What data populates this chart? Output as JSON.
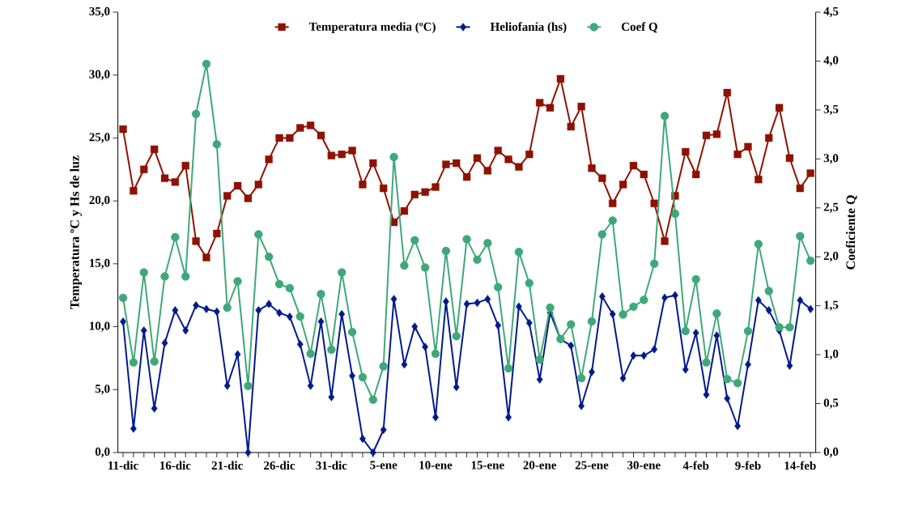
{
  "chart_data": {
    "type": "line",
    "ylabel": "Temperatura ºC y Hs de luz",
    "y2label": "Coeficiente Q",
    "categories": [
      "11-dic",
      null,
      null,
      null,
      null,
      "16-dic",
      null,
      null,
      null,
      null,
      "21-dic",
      null,
      null,
      null,
      null,
      "26-dic",
      null,
      null,
      null,
      null,
      "31-dic",
      null,
      null,
      null,
      null,
      "5-ene",
      null,
      null,
      null,
      null,
      "10-ene",
      null,
      null,
      null,
      null,
      "15-ene",
      null,
      null,
      null,
      null,
      "20-ene",
      null,
      null,
      null,
      null,
      "25-ene",
      null,
      null,
      null,
      null,
      "30-ene",
      null,
      null,
      null,
      null,
      "4-feb",
      null,
      null,
      null,
      null,
      "9-feb",
      null,
      null,
      null,
      null,
      "14-feb",
      null
    ],
    "series": [
      {
        "name": "Temperatura media (ºC)",
        "color": "#8e1200",
        "marker": "square",
        "values": [
          25.7,
          20.8,
          22.5,
          24.1,
          21.8,
          21.5,
          22.8,
          16.8,
          15.5,
          17.4,
          20.4,
          21.2,
          20.2,
          21.3,
          23.3,
          25.0,
          25.0,
          25.8,
          26.0,
          25.2,
          23.6,
          23.7,
          24.0,
          21.3,
          23.0,
          21.0,
          18.3,
          19.2,
          20.5,
          20.7,
          21.1,
          22.9,
          23.0,
          21.9,
          23.4,
          22.4,
          24.0,
          23.3,
          22.7,
          23.7,
          27.8,
          27.4,
          29.7,
          25.9,
          27.5,
          22.6,
          21.8,
          19.8,
          21.3,
          22.8,
          22.1,
          19.8,
          16.8,
          20.4,
          23.9,
          22.1,
          25.2,
          25.3,
          28.6,
          23.7,
          24.3,
          21.7,
          25.0,
          27.4,
          23.4,
          21.0,
          22.2
        ]
      },
      {
        "name": "Heliofanía (hs)",
        "color": "#001a8c",
        "marker": "diamond",
        "values": [
          10.4,
          1.9,
          9.7,
          3.5,
          8.7,
          11.3,
          9.7,
          11.7,
          11.4,
          11.2,
          5.3,
          7.8,
          0.0,
          11.3,
          11.8,
          11.1,
          10.8,
          8.6,
          5.3,
          10.4,
          4.4,
          11.0,
          6.1,
          1.1,
          0.0,
          1.8,
          12.2,
          7.0,
          10.0,
          8.4,
          2.8,
          12.0,
          5.2,
          11.8,
          11.9,
          12.2,
          10.1,
          2.8,
          11.6,
          10.3,
          5.8,
          11.1,
          9.0,
          8.5,
          3.7,
          6.4,
          12.4,
          11.0,
          5.9,
          7.7,
          7.7,
          8.2,
          12.3,
          12.5,
          6.6,
          9.5,
          4.6,
          9.3,
          4.3,
          2.1,
          7.0,
          12.1,
          11.3,
          9.7,
          6.9,
          12.1,
          11.4
        ]
      },
      {
        "name": "Coef Q",
        "color": "#3fa87a",
        "marker": "circle",
        "axis": "y2",
        "values": [
          1.58,
          0.92,
          1.84,
          0.93,
          1.8,
          2.2,
          1.8,
          3.46,
          3.97,
          3.15,
          1.48,
          1.75,
          0.68,
          2.23,
          2.0,
          1.72,
          1.68,
          1.39,
          1.01,
          1.62,
          1.05,
          1.84,
          1.23,
          0.77,
          0.54,
          0.88,
          3.02,
          1.91,
          2.17,
          1.89,
          1.01,
          2.06,
          1.19,
          2.18,
          1.97,
          2.14,
          1.69,
          0.86,
          2.05,
          1.73,
          0.95,
          1.48,
          1.16,
          1.31,
          0.76,
          1.34,
          2.23,
          2.37,
          1.41,
          1.49,
          1.56,
          1.93,
          3.44,
          2.44,
          1.24,
          1.77,
          0.92,
          1.42,
          0.75,
          0.71,
          1.24,
          2.13,
          1.65,
          1.28,
          1.28,
          2.21,
          1.96
        ]
      }
    ],
    "ylim": [
      0,
      35
    ],
    "yticks": [
      {
        "value": 0,
        "label": "0,0"
      },
      {
        "value": 5,
        "label": "5,0"
      },
      {
        "value": 10,
        "label": "10,0"
      },
      {
        "value": 15,
        "label": "15,0"
      },
      {
        "value": 20,
        "label": "20,0"
      },
      {
        "value": 25,
        "label": "25,0"
      },
      {
        "value": 30,
        "label": "30,0"
      },
      {
        "value": 35,
        "label": "35,0"
      }
    ],
    "y2lim": [
      0,
      4.5
    ],
    "y2ticks": [
      {
        "value": 0,
        "label": "0,0"
      },
      {
        "value": 0.5,
        "label": "0,5"
      },
      {
        "value": 1,
        "label": "1,0"
      },
      {
        "value": 1.5,
        "label": "1,5"
      },
      {
        "value": 2,
        "label": "2,0"
      },
      {
        "value": 2.5,
        "label": "2,5"
      },
      {
        "value": 3,
        "label": "3,0"
      },
      {
        "value": 3.5,
        "label": "3,5"
      },
      {
        "value": 4,
        "label": "4,0"
      },
      {
        "value": 4.5,
        "label": "4,5"
      }
    ],
    "grid": false,
    "legend": "top",
    "line_style": "solid"
  }
}
